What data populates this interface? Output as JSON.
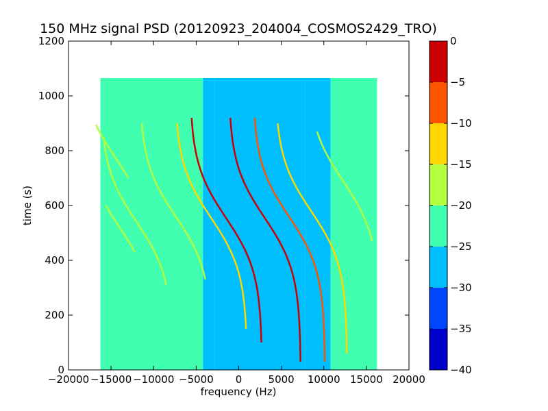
{
  "chart_data": {
    "type": "heatmap",
    "title": "150 MHz signal PSD (20120923_204004_COSMOS2429_TRO)",
    "xlabel": "frequency (Hz)",
    "ylabel": "time (s)",
    "xlim": [
      -20000,
      20000
    ],
    "ylim": [
      0,
      1200
    ],
    "xticks": [
      -20000,
      -15000,
      -10000,
      -5000,
      0,
      5000,
      10000,
      15000,
      20000
    ],
    "yticks": [
      0,
      200,
      400,
      600,
      800,
      1000,
      1200
    ],
    "data_extent": {
      "x": [
        -16250,
        16250
      ],
      "y": [
        0,
        1065
      ]
    },
    "colorbar": {
      "range": [
        -40,
        0
      ],
      "ticks": [
        0,
        -5,
        -10,
        -15,
        -20,
        -25,
        -30,
        -35,
        -40
      ],
      "levels": [
        {
          "from": -40,
          "to": -35,
          "color": "#0000cc"
        },
        {
          "from": -35,
          "to": -30,
          "color": "#0045ff"
        },
        {
          "from": -30,
          "to": -25,
          "color": "#00bfff"
        },
        {
          "from": -25,
          "to": -20,
          "color": "#40ffb0"
        },
        {
          "from": -20,
          "to": -15,
          "color": "#b3ff40"
        },
        {
          "from": -15,
          "to": -10,
          "color": "#ffd700"
        },
        {
          "from": -10,
          "to": -5,
          "color": "#ff5500"
        },
        {
          "from": -5,
          "to": 0,
          "color": "#cc0000"
        }
      ]
    },
    "background_regions": [
      {
        "x": [
          -16250,
          -4200
        ],
        "level": -22.5
      },
      {
        "x": [
          -4200,
          -2800
        ],
        "level": -27.5
      },
      {
        "x": [
          -2800,
          7800
        ],
        "level": -27.5
      },
      {
        "x": [
          7800,
          10800
        ],
        "level": -27.5
      },
      {
        "x": [
          10800,
          16250
        ],
        "level": -22.5
      }
    ],
    "traces": [
      {
        "x0": 12250,
        "t0": 690,
        "k": 5.0,
        "w": 8500,
        "tStart": 470,
        "tEnd": 870,
        "level": -17.5
      },
      {
        "x0": -14100,
        "t0": 525,
        "k": 5.0,
        "w": 8500,
        "tStart": 430,
        "tEnd": 600,
        "level": -17.5
      },
      {
        "x0": -14500,
        "t0": 775,
        "k": 5.0,
        "w": 8500,
        "tStart": 700,
        "tEnd": 895,
        "level": -17.5
      },
      {
        "x0": -12000,
        "t0": 540,
        "k": 5.0,
        "w": 8500,
        "tStart": 310,
        "tEnd": 850,
        "level": -17.5
      },
      {
        "x0": -7400,
        "t0": 560,
        "k": 5.0,
        "w": 8500,
        "tStart": 330,
        "tEnd": 900,
        "level": -17.5
      },
      {
        "x0": -3250,
        "t0": 555,
        "k": 5.0,
        "w": 8500,
        "tStart": 150,
        "tEnd": 900,
        "level": -12.5
      },
      {
        "x0": -1500,
        "t0": 555,
        "k": 5.0,
        "w": 8500,
        "tStart": 100,
        "tEnd": 920,
        "level": -2.5
      },
      {
        "x0": 3050,
        "t0": 555,
        "k": 5.0,
        "w": 8500,
        "tStart": 30,
        "tEnd": 920,
        "level": -2.5
      },
      {
        "x0": 5900,
        "t0": 560,
        "k": 5.0,
        "w": 8500,
        "tStart": 30,
        "tEnd": 920,
        "level": -7.5
      },
      {
        "x0": 8500,
        "t0": 580,
        "k": 5.0,
        "w": 8500,
        "tStart": 60,
        "tEnd": 900,
        "level": -12.5
      }
    ]
  }
}
